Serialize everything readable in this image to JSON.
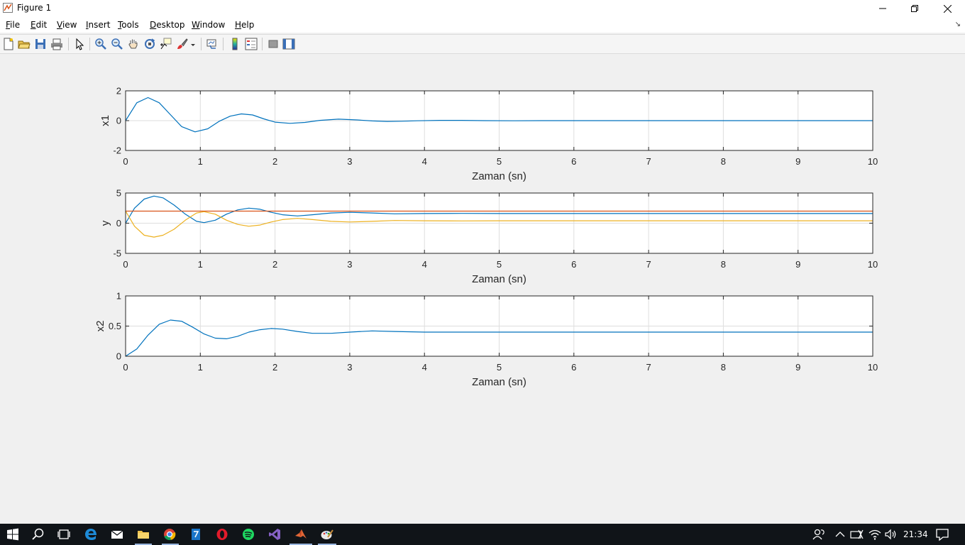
{
  "window": {
    "title": "Figure 1",
    "icons": [
      "matlab-figure-icon",
      "minimize-icon",
      "restore-icon",
      "close-icon"
    ]
  },
  "menu": {
    "items": [
      {
        "label": "File",
        "key": "F",
        "rest": "ile"
      },
      {
        "label": "Edit",
        "key": "E",
        "rest": "dit"
      },
      {
        "label": "View",
        "key": "V",
        "rest": "iew"
      },
      {
        "label": "Insert",
        "key": "I",
        "rest": "nsert"
      },
      {
        "label": "Tools",
        "key": "T",
        "rest": "ools"
      },
      {
        "label": "Desktop",
        "key": "D",
        "rest": "esktop"
      },
      {
        "label": "Window",
        "key": "W",
        "rest": "indow"
      },
      {
        "label": "Help",
        "key": "H",
        "rest": "elp"
      }
    ]
  },
  "toolbar": {
    "icons": [
      "new-figure-icon",
      "open-file-icon",
      "save-icon",
      "print-icon",
      "edit-plot-arrow-icon",
      "zoom-in-icon",
      "zoom-out-icon",
      "pan-hand-icon",
      "rotate-3d-icon",
      "data-cursor-icon",
      "brush-icon",
      "link-plot-icon",
      "colorbar-icon",
      "legend-icon",
      "hide-plot-tools-icon",
      "show-plot-tools-icon"
    ]
  },
  "chart_data": [
    {
      "type": "line",
      "xlabel": "Zaman (sn)",
      "ylabel": "x1",
      "xlim": [
        0,
        10
      ],
      "ylim": [
        -2,
        2
      ],
      "xticks": [
        "0",
        "1",
        "2",
        "3",
        "4",
        "5",
        "6",
        "7",
        "8",
        "9",
        "10"
      ],
      "yticks": [
        "2",
        "0",
        "-2"
      ],
      "ytick_values": [
        2,
        0,
        -2
      ],
      "grid": true,
      "series": [
        {
          "color": "#0072bd",
          "x": [
            0,
            0.15,
            0.3,
            0.45,
            0.6,
            0.75,
            0.93,
            1.1,
            1.25,
            1.4,
            1.55,
            1.7,
            1.85,
            2.0,
            2.2,
            2.4,
            2.6,
            2.85,
            3.1,
            3.3,
            3.5,
            3.7,
            3.9,
            4.2,
            4.5,
            4.8,
            5.2,
            5.6,
            6.0,
            6.5,
            7,
            8,
            9,
            10
          ],
          "y": [
            0,
            1.2,
            1.55,
            1.2,
            0.4,
            -0.4,
            -0.75,
            -0.55,
            -0.05,
            0.3,
            0.45,
            0.38,
            0.12,
            -0.1,
            -0.18,
            -0.12,
            0.02,
            0.1,
            0.05,
            -0.02,
            -0.05,
            -0.04,
            -0.01,
            0.02,
            0.02,
            0.0,
            -0.01,
            0.0,
            0.0,
            0.0,
            0.0,
            0.0,
            0.0,
            0.0
          ]
        }
      ]
    },
    {
      "type": "line",
      "xlabel": "Zaman (sn)",
      "ylabel": "y",
      "xlim": [
        0,
        10
      ],
      "ylim": [
        -5,
        5
      ],
      "xticks": [
        "0",
        "1",
        "2",
        "3",
        "4",
        "5",
        "6",
        "7",
        "8",
        "9",
        "10"
      ],
      "yticks": [
        "5",
        "0",
        "-5"
      ],
      "ytick_values": [
        5,
        0,
        -5
      ],
      "grid": true,
      "series": [
        {
          "color": "#0072bd",
          "x": [
            0,
            0.12,
            0.25,
            0.38,
            0.5,
            0.65,
            0.8,
            0.95,
            1.05,
            1.2,
            1.35,
            1.5,
            1.65,
            1.8,
            1.95,
            2.1,
            2.3,
            2.5,
            2.75,
            3.0,
            3.3,
            3.6,
            4.0,
            4.5,
            5,
            6,
            7,
            8,
            9,
            10
          ],
          "y": [
            0,
            2.5,
            4.0,
            4.5,
            4.2,
            3.0,
            1.5,
            0.3,
            0.1,
            0.5,
            1.5,
            2.2,
            2.5,
            2.3,
            1.8,
            1.4,
            1.2,
            1.4,
            1.7,
            1.8,
            1.7,
            1.55,
            1.6,
            1.62,
            1.6,
            1.6,
            1.6,
            1.6,
            1.6,
            1.6
          ]
        },
        {
          "color": "#d95319",
          "x": [
            0,
            10
          ],
          "y": [
            2,
            2
          ]
        },
        {
          "color": "#edb120",
          "x": [
            0,
            0.12,
            0.25,
            0.38,
            0.5,
            0.65,
            0.8,
            0.95,
            1.05,
            1.2,
            1.35,
            1.5,
            1.65,
            1.8,
            1.95,
            2.1,
            2.3,
            2.5,
            2.75,
            3.0,
            3.3,
            3.6,
            4.0,
            4.5,
            5,
            6,
            7,
            8,
            9,
            10
          ],
          "y": [
            2,
            -0.5,
            -2.0,
            -2.3,
            -2.0,
            -1.0,
            0.5,
            1.7,
            1.9,
            1.5,
            0.5,
            -0.2,
            -0.5,
            -0.3,
            0.2,
            0.6,
            0.8,
            0.6,
            0.3,
            0.2,
            0.3,
            0.45,
            0.4,
            0.38,
            0.4,
            0.4,
            0.4,
            0.4,
            0.4,
            0.4
          ]
        }
      ]
    },
    {
      "type": "line",
      "xlabel": "Zaman (sn)",
      "ylabel": "x2",
      "xlim": [
        0,
        10
      ],
      "ylim": [
        0,
        1
      ],
      "xticks": [
        "0",
        "1",
        "2",
        "3",
        "4",
        "5",
        "6",
        "7",
        "8",
        "9",
        "10"
      ],
      "yticks": [
        "1",
        "0.5",
        "0"
      ],
      "ytick_values": [
        1,
        0.5,
        0
      ],
      "grid": true,
      "series": [
        {
          "color": "#0072bd",
          "x": [
            0,
            0.15,
            0.3,
            0.45,
            0.6,
            0.75,
            0.9,
            1.05,
            1.2,
            1.35,
            1.5,
            1.65,
            1.8,
            1.95,
            2.1,
            2.3,
            2.5,
            2.75,
            3.0,
            3.3,
            3.6,
            4.0,
            4.5,
            5,
            6,
            7,
            8,
            9,
            10
          ],
          "y": [
            0,
            0.12,
            0.35,
            0.53,
            0.6,
            0.58,
            0.48,
            0.37,
            0.3,
            0.29,
            0.33,
            0.4,
            0.44,
            0.46,
            0.45,
            0.41,
            0.38,
            0.38,
            0.4,
            0.42,
            0.41,
            0.4,
            0.4,
            0.4,
            0.4,
            0.4,
            0.4,
            0.4,
            0.4
          ]
        }
      ]
    }
  ],
  "taskbar": {
    "icons": [
      "windows-start-icon",
      "search-icon",
      "task-view-icon",
      "edge-icon",
      "mail-icon",
      "file-explorer-icon",
      "chrome-icon",
      "app-icon",
      "opera-icon",
      "spotify-icon",
      "visual-studio-icon",
      "matlab-icon",
      "paint-icon"
    ],
    "tray_icons": [
      "people-icon",
      "chevron-up-icon",
      "keyboard-icon",
      "wifi-icon",
      "volume-icon",
      "notification-icon"
    ],
    "time": "21:34"
  }
}
